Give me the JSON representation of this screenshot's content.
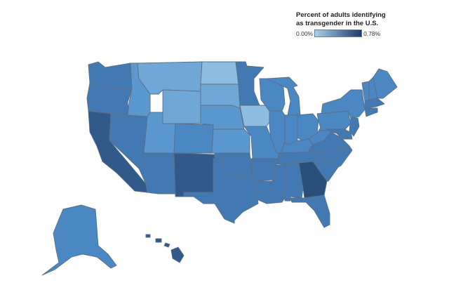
{
  "legend": {
    "title_line1": "Percent of adults identifying",
    "title_line2": "as transgender in the U.S.",
    "min_label": "0.00%",
    "max_label": "0.78%",
    "color_low": "#a8cfe8",
    "color_high": "#1f3b6a"
  },
  "colors": {
    "level1": "#8dbde0",
    "level2": "#6fa8d6",
    "level3": "#5b98cf",
    "level4": "#4b87c2",
    "level5": "#4279b3",
    "level6": "#3a6aa0",
    "level7": "#315a8a",
    "level8": "#2a4e7a"
  },
  "states": [
    {
      "code": "WA",
      "level": 5
    },
    {
      "code": "OR",
      "level": 5
    },
    {
      "code": "CA",
      "level": 7
    },
    {
      "code": "NV",
      "level": 5
    },
    {
      "code": "ID",
      "level": 3
    },
    {
      "code": "MT",
      "level": 2
    },
    {
      "code": "WY",
      "level": 2
    },
    {
      "code": "UT",
      "level": 3
    },
    {
      "code": "AZ",
      "level": 5
    },
    {
      "code": "CO",
      "level": 4
    },
    {
      "code": "NM",
      "level": 7
    },
    {
      "code": "ND",
      "level": 1
    },
    {
      "code": "SD",
      "level": 2
    },
    {
      "code": "NE",
      "level": 3
    },
    {
      "code": "KS",
      "level": 3
    },
    {
      "code": "OK",
      "level": 5
    },
    {
      "code": "TX",
      "level": 5
    },
    {
      "code": "MN",
      "level": 5
    },
    {
      "code": "IA",
      "level": 1
    },
    {
      "code": "MO",
      "level": 4
    },
    {
      "code": "AR",
      "level": 5
    },
    {
      "code": "LA",
      "level": 5
    },
    {
      "code": "WI",
      "level": 4
    },
    {
      "code": "IL",
      "level": 4
    },
    {
      "code": "MI",
      "level": 4
    },
    {
      "code": "IN",
      "level": 4
    },
    {
      "code": "OH",
      "level": 4
    },
    {
      "code": "KY",
      "level": 4
    },
    {
      "code": "TN",
      "level": 5
    },
    {
      "code": "MS",
      "level": 5
    },
    {
      "code": "AL",
      "level": 5
    },
    {
      "code": "GA",
      "level": 8
    },
    {
      "code": "FL",
      "level": 5
    },
    {
      "code": "SC",
      "level": 5
    },
    {
      "code": "NC",
      "level": 5
    },
    {
      "code": "VA",
      "level": 5
    },
    {
      "code": "WV",
      "level": 4
    },
    {
      "code": "PA",
      "level": 4
    },
    {
      "code": "NY",
      "level": 4
    },
    {
      "code": "VT",
      "level": 4
    },
    {
      "code": "NH",
      "level": 4
    },
    {
      "code": "ME",
      "level": 4
    },
    {
      "code": "MA",
      "level": 5
    },
    {
      "code": "CT",
      "level": 5
    },
    {
      "code": "RI",
      "level": 5
    },
    {
      "code": "NJ",
      "level": 5
    },
    {
      "code": "DE",
      "level": 5
    },
    {
      "code": "MD",
      "level": 5
    },
    {
      "code": "AK",
      "level": 4
    },
    {
      "code": "HI",
      "level": 7
    }
  ]
}
